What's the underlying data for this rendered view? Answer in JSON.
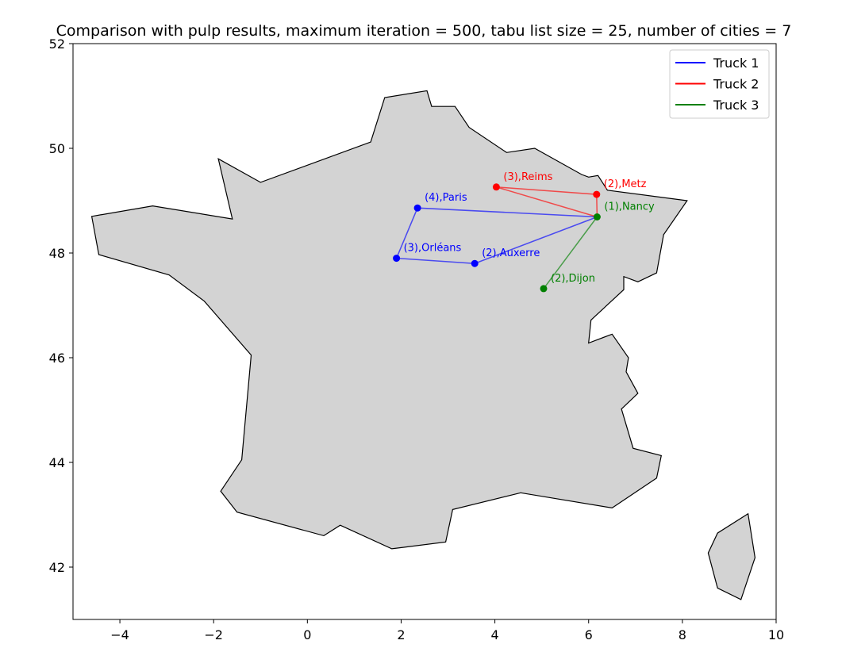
{
  "chart_data": {
    "type": "map-route",
    "title": "Comparison with pulp results, maximum iteration = 500, tabu list size = 25, number of cities = 7",
    "xlabel": "",
    "ylabel": "",
    "xlim": [
      -5,
      10
    ],
    "ylim": [
      41,
      52
    ],
    "xticks": [
      -4,
      -2,
      0,
      2,
      4,
      6,
      8,
      10
    ],
    "yticks": [
      42,
      44,
      46,
      48,
      50,
      52
    ],
    "xtick_labels": [
      "−4",
      "−2",
      "0",
      "2",
      "4",
      "6",
      "8",
      "10"
    ],
    "ytick_labels": [
      "42",
      "44",
      "46",
      "48",
      "50",
      "52"
    ],
    "grid": false,
    "legend_position": "top-right",
    "map_fill": "#d3d3d3",
    "map_outline": [
      [
        -4.6,
        48.7
      ],
      [
        -3.3,
        48.9
      ],
      [
        -1.6,
        48.65
      ],
      [
        -1.9,
        49.8
      ],
      [
        -1.0,
        49.35
      ],
      [
        1.35,
        50.12
      ],
      [
        1.65,
        50.97
      ],
      [
        2.55,
        51.1
      ],
      [
        2.65,
        50.8
      ],
      [
        3.15,
        50.8
      ],
      [
        3.45,
        50.4
      ],
      [
        4.25,
        49.92
      ],
      [
        4.85,
        50.0
      ],
      [
        5.85,
        49.5
      ],
      [
        6.0,
        49.45
      ],
      [
        6.2,
        49.48
      ],
      [
        6.4,
        49.2
      ],
      [
        8.1,
        49.0
      ],
      [
        7.6,
        48.35
      ],
      [
        7.45,
        47.62
      ],
      [
        7.05,
        47.45
      ],
      [
        6.75,
        47.55
      ],
      [
        6.75,
        47.3
      ],
      [
        6.05,
        46.72
      ],
      [
        6.0,
        46.28
      ],
      [
        6.5,
        46.45
      ],
      [
        6.85,
        46.0
      ],
      [
        6.8,
        45.73
      ],
      [
        7.05,
        45.32
      ],
      [
        6.7,
        45.02
      ],
      [
        6.95,
        44.27
      ],
      [
        7.55,
        44.13
      ],
      [
        7.45,
        43.7
      ],
      [
        6.5,
        43.13
      ],
      [
        4.55,
        43.42
      ],
      [
        3.1,
        43.1
      ],
      [
        2.95,
        42.48
      ],
      [
        1.8,
        42.35
      ],
      [
        0.7,
        42.8
      ],
      [
        0.35,
        42.6
      ],
      [
        -1.5,
        43.05
      ],
      [
        -1.85,
        43.45
      ],
      [
        -1.4,
        44.05
      ],
      [
        -1.2,
        46.05
      ],
      [
        -2.2,
        47.08
      ],
      [
        -2.95,
        47.58
      ],
      [
        -4.45,
        47.97
      ]
    ],
    "corsica_outline": [
      [
        9.4,
        43.02
      ],
      [
        9.55,
        42.18
      ],
      [
        9.25,
        41.38
      ],
      [
        8.75,
        41.6
      ],
      [
        8.55,
        42.27
      ],
      [
        8.75,
        42.65
      ]
    ],
    "series": [
      {
        "name": "Truck 1",
        "color": "#0000ff",
        "route": [
          [
            6.18,
            48.69
          ],
          [
            2.35,
            48.86
          ],
          [
            1.9,
            47.9
          ],
          [
            3.57,
            47.8
          ],
          [
            6.18,
            48.69
          ]
        ],
        "points": [
          {
            "label": "(4),Paris",
            "x": 2.35,
            "y": 48.86
          },
          {
            "label": "(3),Orléans",
            "x": 1.9,
            "y": 47.9
          },
          {
            "label": "(2),Auxerre",
            "x": 3.57,
            "y": 47.8
          }
        ]
      },
      {
        "name": "Truck 2",
        "color": "#ff0000",
        "route": [
          [
            6.18,
            48.69
          ],
          [
            4.03,
            49.26
          ],
          [
            6.17,
            49.12
          ],
          [
            6.18,
            48.69
          ]
        ],
        "points": [
          {
            "label": "(3),Reims",
            "x": 4.03,
            "y": 49.26
          },
          {
            "label": "(2),Metz",
            "x": 6.17,
            "y": 49.12
          }
        ]
      },
      {
        "name": "Truck 3",
        "color": "#008000",
        "route": [
          [
            6.18,
            48.69
          ],
          [
            5.04,
            47.32
          ],
          [
            6.18,
            48.69
          ]
        ],
        "points": [
          {
            "label": "(2),Dijon",
            "x": 5.04,
            "y": 47.32
          },
          {
            "label": "(1),Nancy",
            "x": 6.18,
            "y": 48.69
          }
        ]
      }
    ]
  }
}
